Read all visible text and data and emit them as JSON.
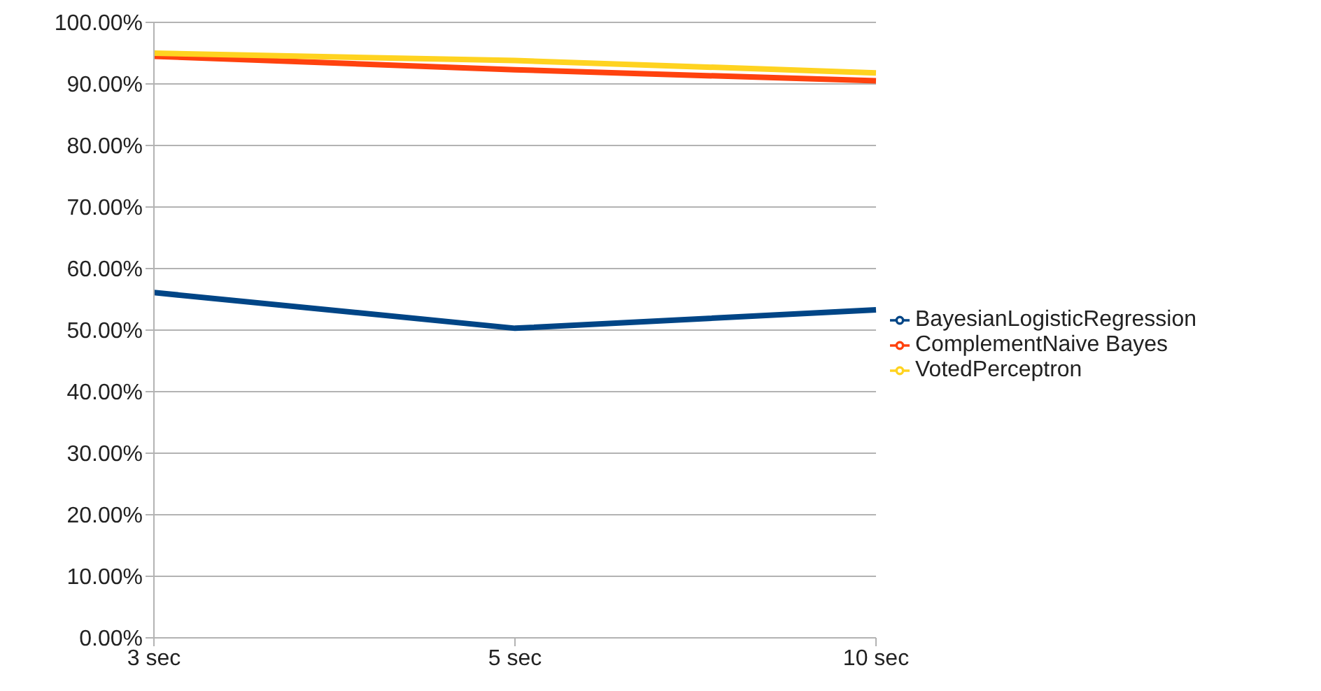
{
  "chart_data": {
    "type": "line",
    "categories": [
      "3 sec",
      "5 sec",
      "10 sec"
    ],
    "series": [
      {
        "name": "BayesianLogisticRegression",
        "color": "#004586",
        "values": [
          56.1,
          50.3,
          53.3
        ]
      },
      {
        "name": "ComplementNaive Bayes",
        "color": "#ff420e",
        "values": [
          94.5,
          92.3,
          90.5
        ]
      },
      {
        "name": "VotedPerceptron",
        "color": "#ffd320",
        "values": [
          95.0,
          93.8,
          91.8
        ]
      }
    ],
    "ylim": [
      0,
      100
    ],
    "yticks": [
      {
        "value": 0,
        "label": "0.00%"
      },
      {
        "value": 10,
        "label": "10.00%"
      },
      {
        "value": 20,
        "label": "20.00%"
      },
      {
        "value": 30,
        "label": "30.00%"
      },
      {
        "value": 40,
        "label": "40.00%"
      },
      {
        "value": 50,
        "label": "50.00%"
      },
      {
        "value": 60,
        "label": "60.00%"
      },
      {
        "value": 70,
        "label": "70.00%"
      },
      {
        "value": 80,
        "label": "80.00%"
      },
      {
        "value": 90,
        "label": "90.00%"
      },
      {
        "value": 100,
        "label": "100.00%"
      }
    ],
    "grid": "y",
    "legend": "right",
    "marker": "none"
  }
}
